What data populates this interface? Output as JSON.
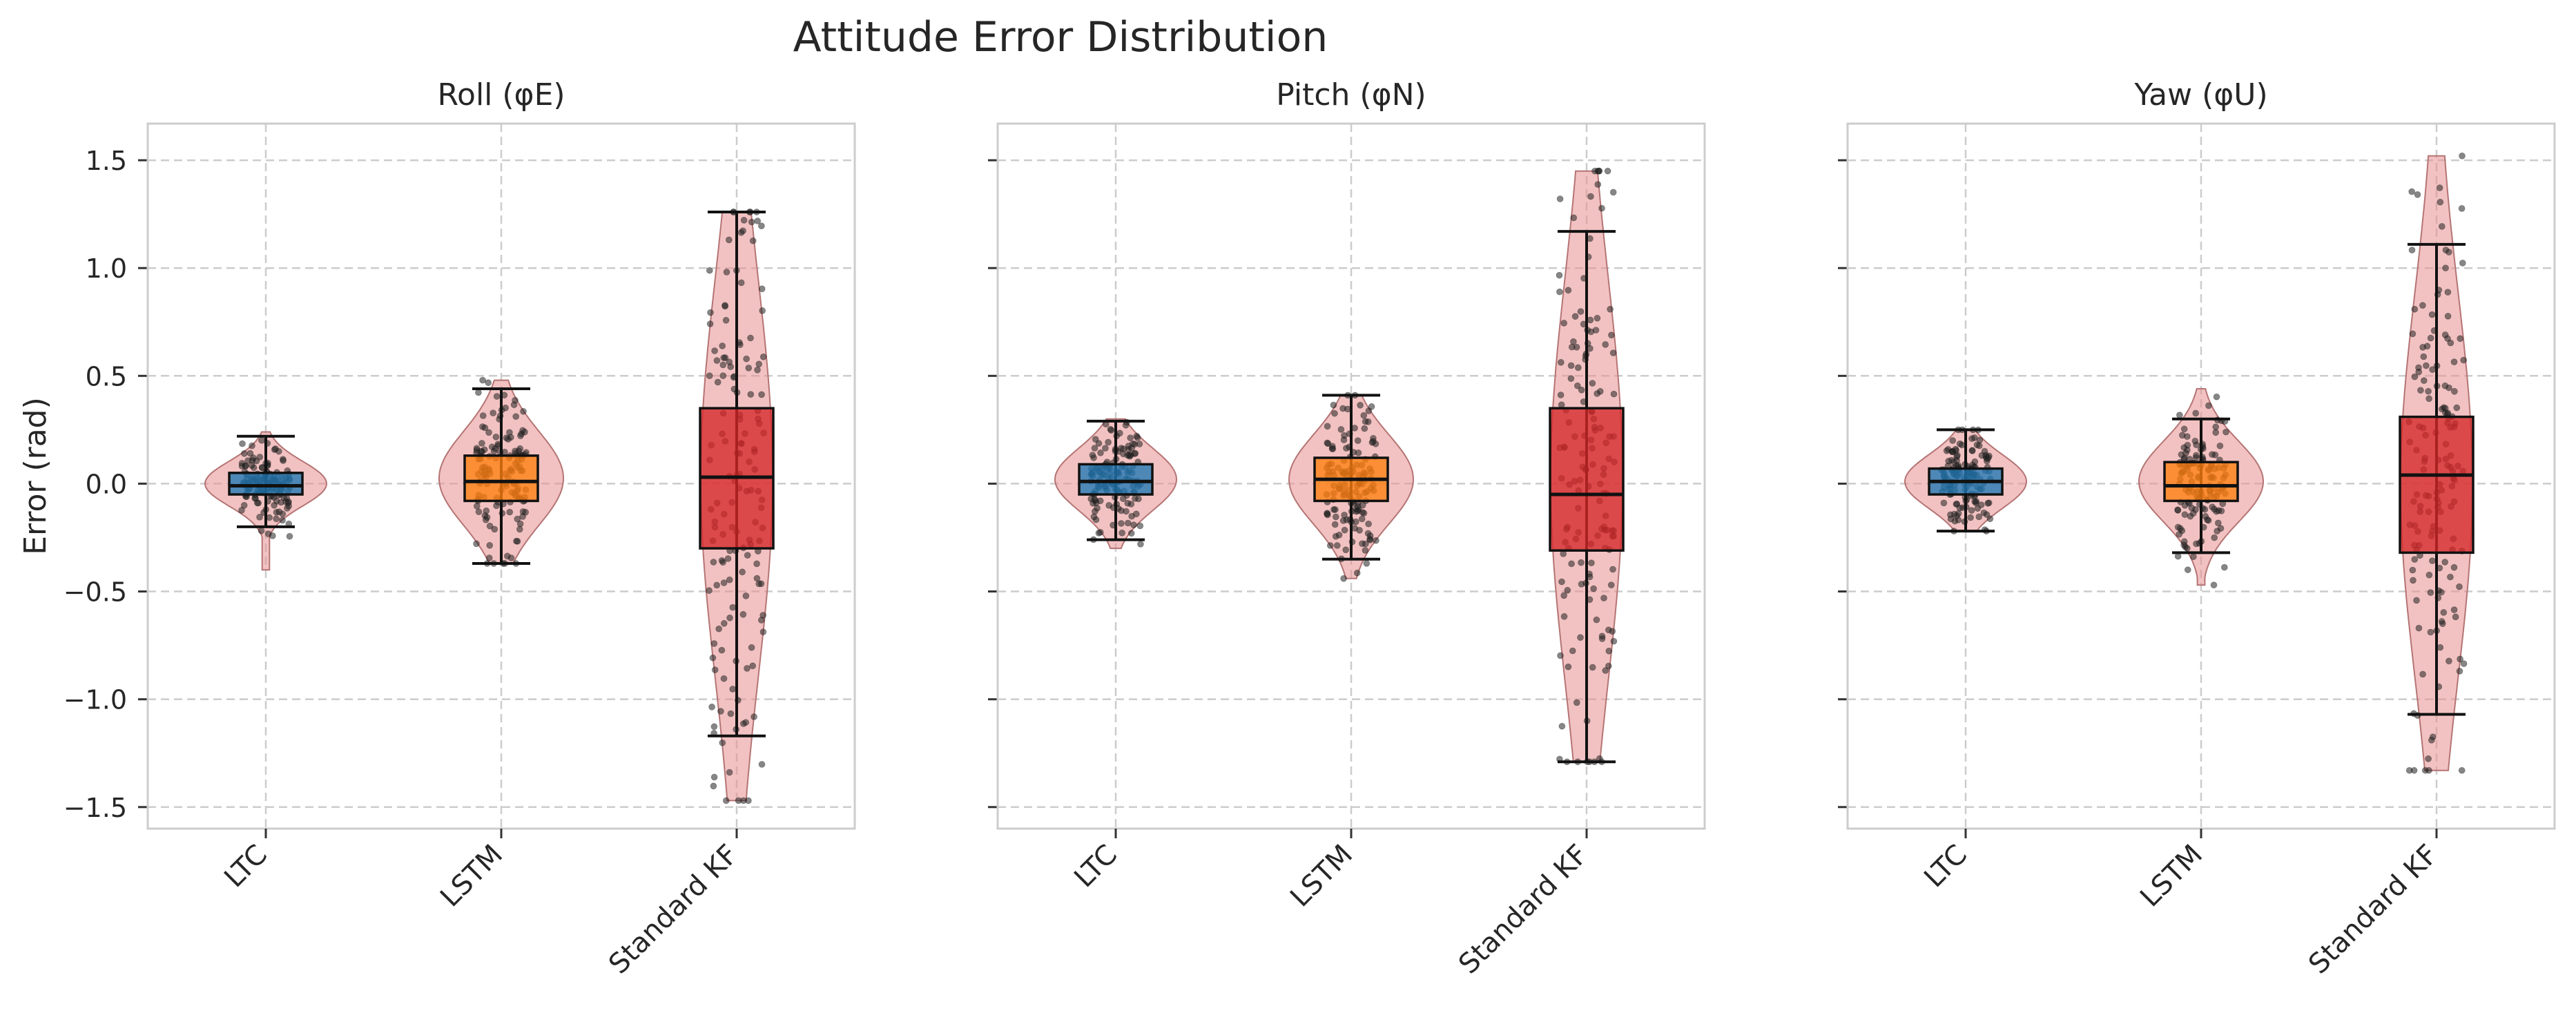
{
  "title": "Attitude Error Distribution",
  "colors": {
    "LTC": "#1f77b4",
    "LSTM": "#ff7f0e",
    "Standard KF": "#d62728",
    "violin": "#e8908f",
    "grid": "#cccccc",
    "frame": "#cccccc",
    "points": "#222222"
  },
  "chart_data": [
    {
      "type": "violin+box",
      "title": "Roll (φE)",
      "ylabel": "Error (rad)",
      "ylim": [
        -1.6,
        1.67
      ],
      "yticks": [
        -1.5,
        -1.0,
        -0.5,
        0.0,
        0.5,
        1.0,
        1.5
      ],
      "ytick_labels": [
        "−1.5",
        "−1.0",
        "−0.5",
        "0.0",
        "0.5",
        "1.0",
        "1.5"
      ],
      "categories": [
        "LTC",
        "LSTM",
        "Standard KF"
      ],
      "series": [
        {
          "name": "LTC",
          "whisker_low": -0.2,
          "q1": -0.05,
          "median": -0.01,
          "q3": 0.05,
          "whisker_high": 0.22,
          "min": -0.4,
          "max": 0.24
        },
        {
          "name": "LSTM",
          "whisker_low": -0.37,
          "q1": -0.08,
          "median": 0.01,
          "q3": 0.13,
          "whisker_high": 0.44,
          "min": -0.37,
          "max": 0.48
        },
        {
          "name": "Standard KF",
          "whisker_low": -1.17,
          "q1": -0.3,
          "median": 0.03,
          "q3": 0.35,
          "whisker_high": 1.26,
          "min": -1.47,
          "max": 1.26
        }
      ],
      "grid": true
    },
    {
      "type": "violin+box",
      "title": "Pitch (φN)",
      "ylabel": "",
      "ylim": [
        -1.6,
        1.67
      ],
      "yticks": [
        -1.5,
        -1.0,
        -0.5,
        0.0,
        0.5,
        1.0,
        1.5
      ],
      "ytick_labels": [],
      "categories": [
        "LTC",
        "LSTM",
        "Standard KF"
      ],
      "series": [
        {
          "name": "LTC",
          "whisker_low": -0.26,
          "q1": -0.05,
          "median": 0.01,
          "q3": 0.09,
          "whisker_high": 0.29,
          "min": -0.3,
          "max": 0.3
        },
        {
          "name": "LSTM",
          "whisker_low": -0.35,
          "q1": -0.08,
          "median": 0.02,
          "q3": 0.12,
          "whisker_high": 0.41,
          "min": -0.44,
          "max": 0.41
        },
        {
          "name": "Standard KF",
          "whisker_low": -1.29,
          "q1": -0.31,
          "median": -0.05,
          "q3": 0.35,
          "whisker_high": 1.17,
          "min": -1.29,
          "max": 1.45
        }
      ],
      "grid": true
    },
    {
      "type": "violin+box",
      "title": "Yaw (φU)",
      "ylabel": "",
      "ylim": [
        -1.6,
        1.67
      ],
      "yticks": [
        -1.5,
        -1.0,
        -0.5,
        0.0,
        0.5,
        1.0,
        1.5
      ],
      "ytick_labels": [],
      "categories": [
        "LTC",
        "LSTM",
        "Standard KF"
      ],
      "series": [
        {
          "name": "LTC",
          "whisker_low": -0.22,
          "q1": -0.05,
          "median": 0.01,
          "q3": 0.07,
          "whisker_high": 0.25,
          "min": -0.22,
          "max": 0.25
        },
        {
          "name": "LSTM",
          "whisker_low": -0.32,
          "q1": -0.08,
          "median": -0.01,
          "q3": 0.1,
          "whisker_high": 0.3,
          "min": -0.47,
          "max": 0.44
        },
        {
          "name": "Standard KF",
          "whisker_low": -1.07,
          "q1": -0.32,
          "median": 0.04,
          "q3": 0.31,
          "whisker_high": 1.11,
          "min": -1.33,
          "max": 1.52
        }
      ],
      "grid": true
    }
  ]
}
